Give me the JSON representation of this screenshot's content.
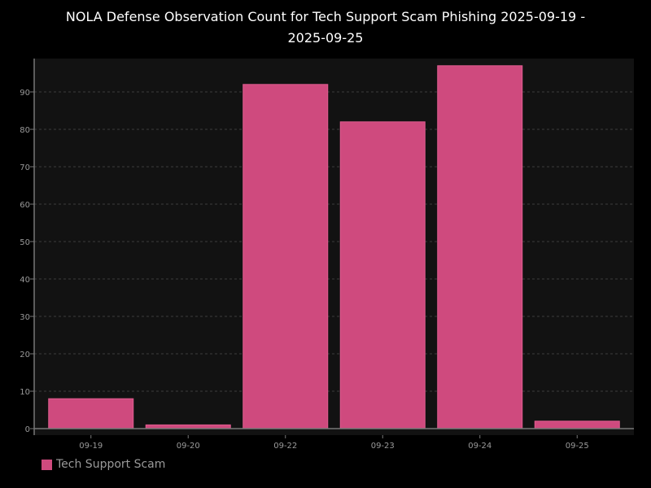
{
  "chart_data": {
    "type": "bar",
    "title_lines": [
      "NOLA Defense Observation Count for Tech Support Scam Phishing 2025-09-19 -",
      "2025-09-25"
    ],
    "categories": [
      "09-19",
      "09-20",
      "09-22",
      "09-23",
      "09-24",
      "09-25"
    ],
    "series": [
      {
        "name": "Tech Support Scam",
        "values": [
          8,
          1,
          92,
          82,
          97,
          2
        ],
        "color": "#cf4a7e"
      }
    ],
    "yticks": [
      0,
      10,
      20,
      30,
      40,
      50,
      60,
      70,
      80,
      90
    ],
    "ylim": [
      0,
      98
    ],
    "grid": true,
    "legend_position": "bottom-left",
    "colors": {
      "background": "#000000",
      "plot_background": "#121212",
      "grid": "#2e2e2e",
      "axis": "#777777",
      "tick_label": "#9a9a9a"
    }
  }
}
